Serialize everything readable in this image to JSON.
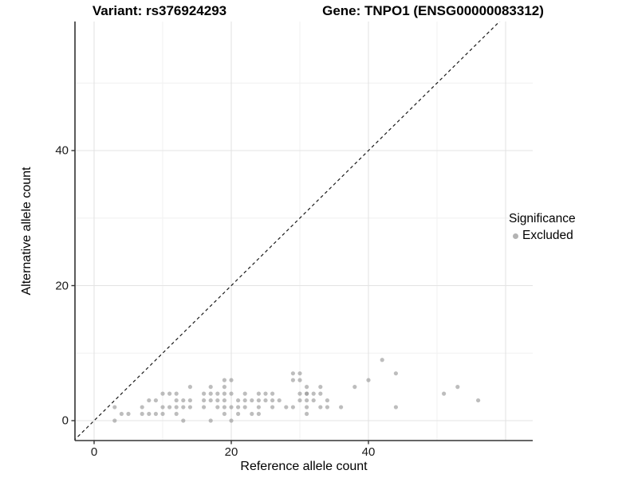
{
  "chart_data": {
    "type": "scatter",
    "title_left": "Variant: rs376924293",
    "title_right": "Gene: TNPO1 (ENSG00000083312)",
    "xlabel": "Reference allele count",
    "ylabel": "Alternative allele count",
    "xlim": [
      -2.8,
      64
    ],
    "ylim": [
      -3,
      59
    ],
    "grid": true,
    "axes": {
      "x_ticks": [
        0,
        20,
        40
      ],
      "y_ticks": [
        0,
        20,
        40
      ],
      "x_major_grid": [
        0,
        20,
        40,
        60
      ],
      "x_minor_grid": [
        10,
        30,
        50
      ],
      "y_major_grid": [
        0,
        20,
        40
      ],
      "y_minor_grid": [
        10,
        30,
        50
      ]
    },
    "identity_line": {
      "style": "dashed",
      "from": [
        -3,
        -3
      ],
      "to": [
        59.2,
        59.2
      ]
    },
    "legend": {
      "title": "Significance",
      "position": "right",
      "items": [
        {
          "label": "Excluded",
          "color": "#b3b3b3"
        }
      ]
    },
    "series": [
      {
        "name": "Excluded",
        "color": "#999999",
        "opacity": 0.65,
        "points": [
          [
            3,
            0
          ],
          [
            13,
            0
          ],
          [
            17,
            0
          ],
          [
            20,
            0
          ],
          [
            4,
            1
          ],
          [
            5,
            1
          ],
          [
            7,
            1
          ],
          [
            8,
            1
          ],
          [
            9,
            1
          ],
          [
            10,
            1
          ],
          [
            12,
            1
          ],
          [
            19,
            1
          ],
          [
            21,
            1
          ],
          [
            23,
            1
          ],
          [
            24,
            1
          ],
          [
            31,
            1
          ],
          [
            3,
            2
          ],
          [
            7,
            2
          ],
          [
            10,
            2
          ],
          [
            11,
            2
          ],
          [
            12,
            2
          ],
          [
            13,
            2
          ],
          [
            14,
            2
          ],
          [
            16,
            2
          ],
          [
            18,
            2
          ],
          [
            19,
            2
          ],
          [
            20,
            2
          ],
          [
            21,
            2
          ],
          [
            22,
            2
          ],
          [
            24,
            2
          ],
          [
            26,
            2
          ],
          [
            28,
            2
          ],
          [
            29,
            2
          ],
          [
            31,
            2
          ],
          [
            33,
            2
          ],
          [
            34,
            2
          ],
          [
            36,
            2
          ],
          [
            44,
            2
          ],
          [
            8,
            3
          ],
          [
            9,
            3
          ],
          [
            12,
            3
          ],
          [
            13,
            3
          ],
          [
            14,
            3
          ],
          [
            16,
            3
          ],
          [
            17,
            3
          ],
          [
            18,
            3
          ],
          [
            19,
            3
          ],
          [
            21,
            3
          ],
          [
            22,
            3
          ],
          [
            23,
            3
          ],
          [
            24,
            3
          ],
          [
            25,
            3
          ],
          [
            26,
            3
          ],
          [
            27,
            3
          ],
          [
            30,
            3
          ],
          [
            31,
            3
          ],
          [
            32,
            3
          ],
          [
            34,
            3
          ],
          [
            56,
            3
          ],
          [
            10,
            4
          ],
          [
            11,
            4
          ],
          [
            12,
            4
          ],
          [
            16,
            4
          ],
          [
            17,
            4
          ],
          [
            18,
            4
          ],
          [
            19,
            4
          ],
          [
            20,
            4
          ],
          [
            22,
            4
          ],
          [
            24,
            4
          ],
          [
            25,
            4
          ],
          [
            26,
            4
          ],
          [
            30,
            4
          ],
          [
            31,
            4
          ],
          [
            31,
            4
          ],
          [
            32,
            4
          ],
          [
            33,
            4
          ],
          [
            51,
            4
          ],
          [
            14,
            5
          ],
          [
            17,
            5
          ],
          [
            19,
            5
          ],
          [
            31,
            5
          ],
          [
            33,
            5
          ],
          [
            38,
            5
          ],
          [
            53,
            5
          ],
          [
            19,
            6
          ],
          [
            20,
            6
          ],
          [
            29,
            6
          ],
          [
            30,
            6
          ],
          [
            40,
            6
          ],
          [
            29,
            7
          ],
          [
            30,
            7
          ],
          [
            44,
            7
          ],
          [
            42,
            9
          ]
        ]
      }
    ],
    "colors": {
      "background": "#ffffff",
      "grid_major": "#e3e3e3",
      "grid_minor": "#f0f0f0",
      "axis_line": "#333333",
      "tick_text": "#1a1a1a",
      "identity_line": "#1a1a1a",
      "point": "#999999"
    }
  }
}
